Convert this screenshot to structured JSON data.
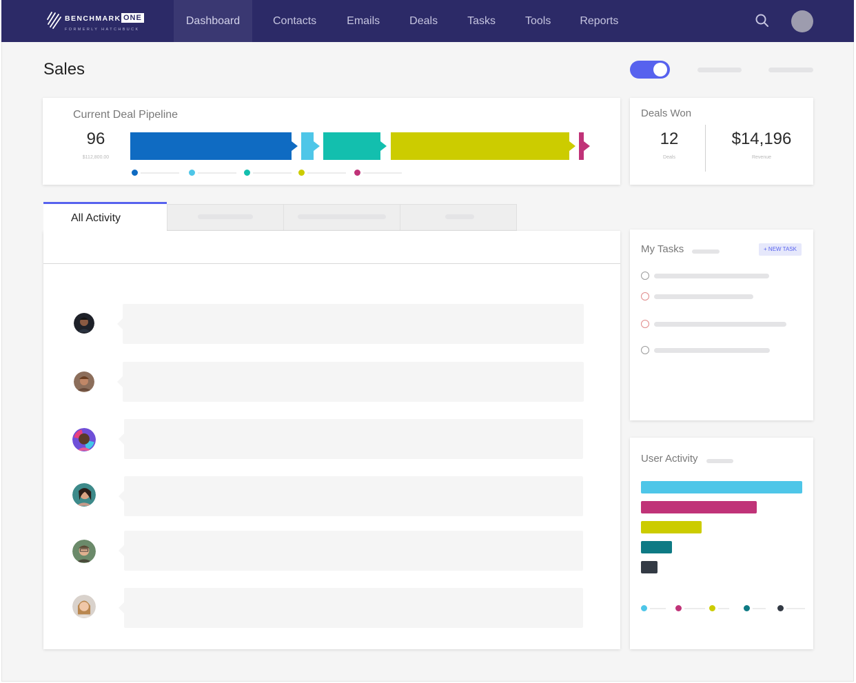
{
  "brand": {
    "name": "BENCHMARK",
    "badge": "ONE",
    "tagline": "FORMERLY HATCHBUCK"
  },
  "nav": {
    "items": [
      "Dashboard",
      "Contacts",
      "Emails",
      "Deals",
      "Tasks",
      "Tools",
      "Reports"
    ],
    "active": "Dashboard",
    "search_icon": "search-icon",
    "avatar_icon": "user-avatar"
  },
  "page": {
    "title": "Sales"
  },
  "pipeline": {
    "title": "Current Deal Pipeline",
    "count": "96",
    "amount": "$112,800.00",
    "stage_colors": [
      "#0f6bc2",
      "#4ec6e8",
      "#13bfae",
      "#cccc00",
      "#c03378"
    ]
  },
  "deals_won": {
    "title": "Deals Won",
    "deals_value": "12",
    "deals_label": "Deals",
    "revenue_value": "$14,196",
    "revenue_label": "Revenue"
  },
  "activity": {
    "active_tab": "All Activity",
    "rows": 6
  },
  "tasks": {
    "title": "My Tasks",
    "new_task_label": "+ NEW TASK"
  },
  "user_activity": {
    "title": "User Activity",
    "bar_colors": [
      "#4ec6e8",
      "#c03378",
      "#cccc00",
      "#0e7a84",
      "#333a44"
    ]
  }
}
